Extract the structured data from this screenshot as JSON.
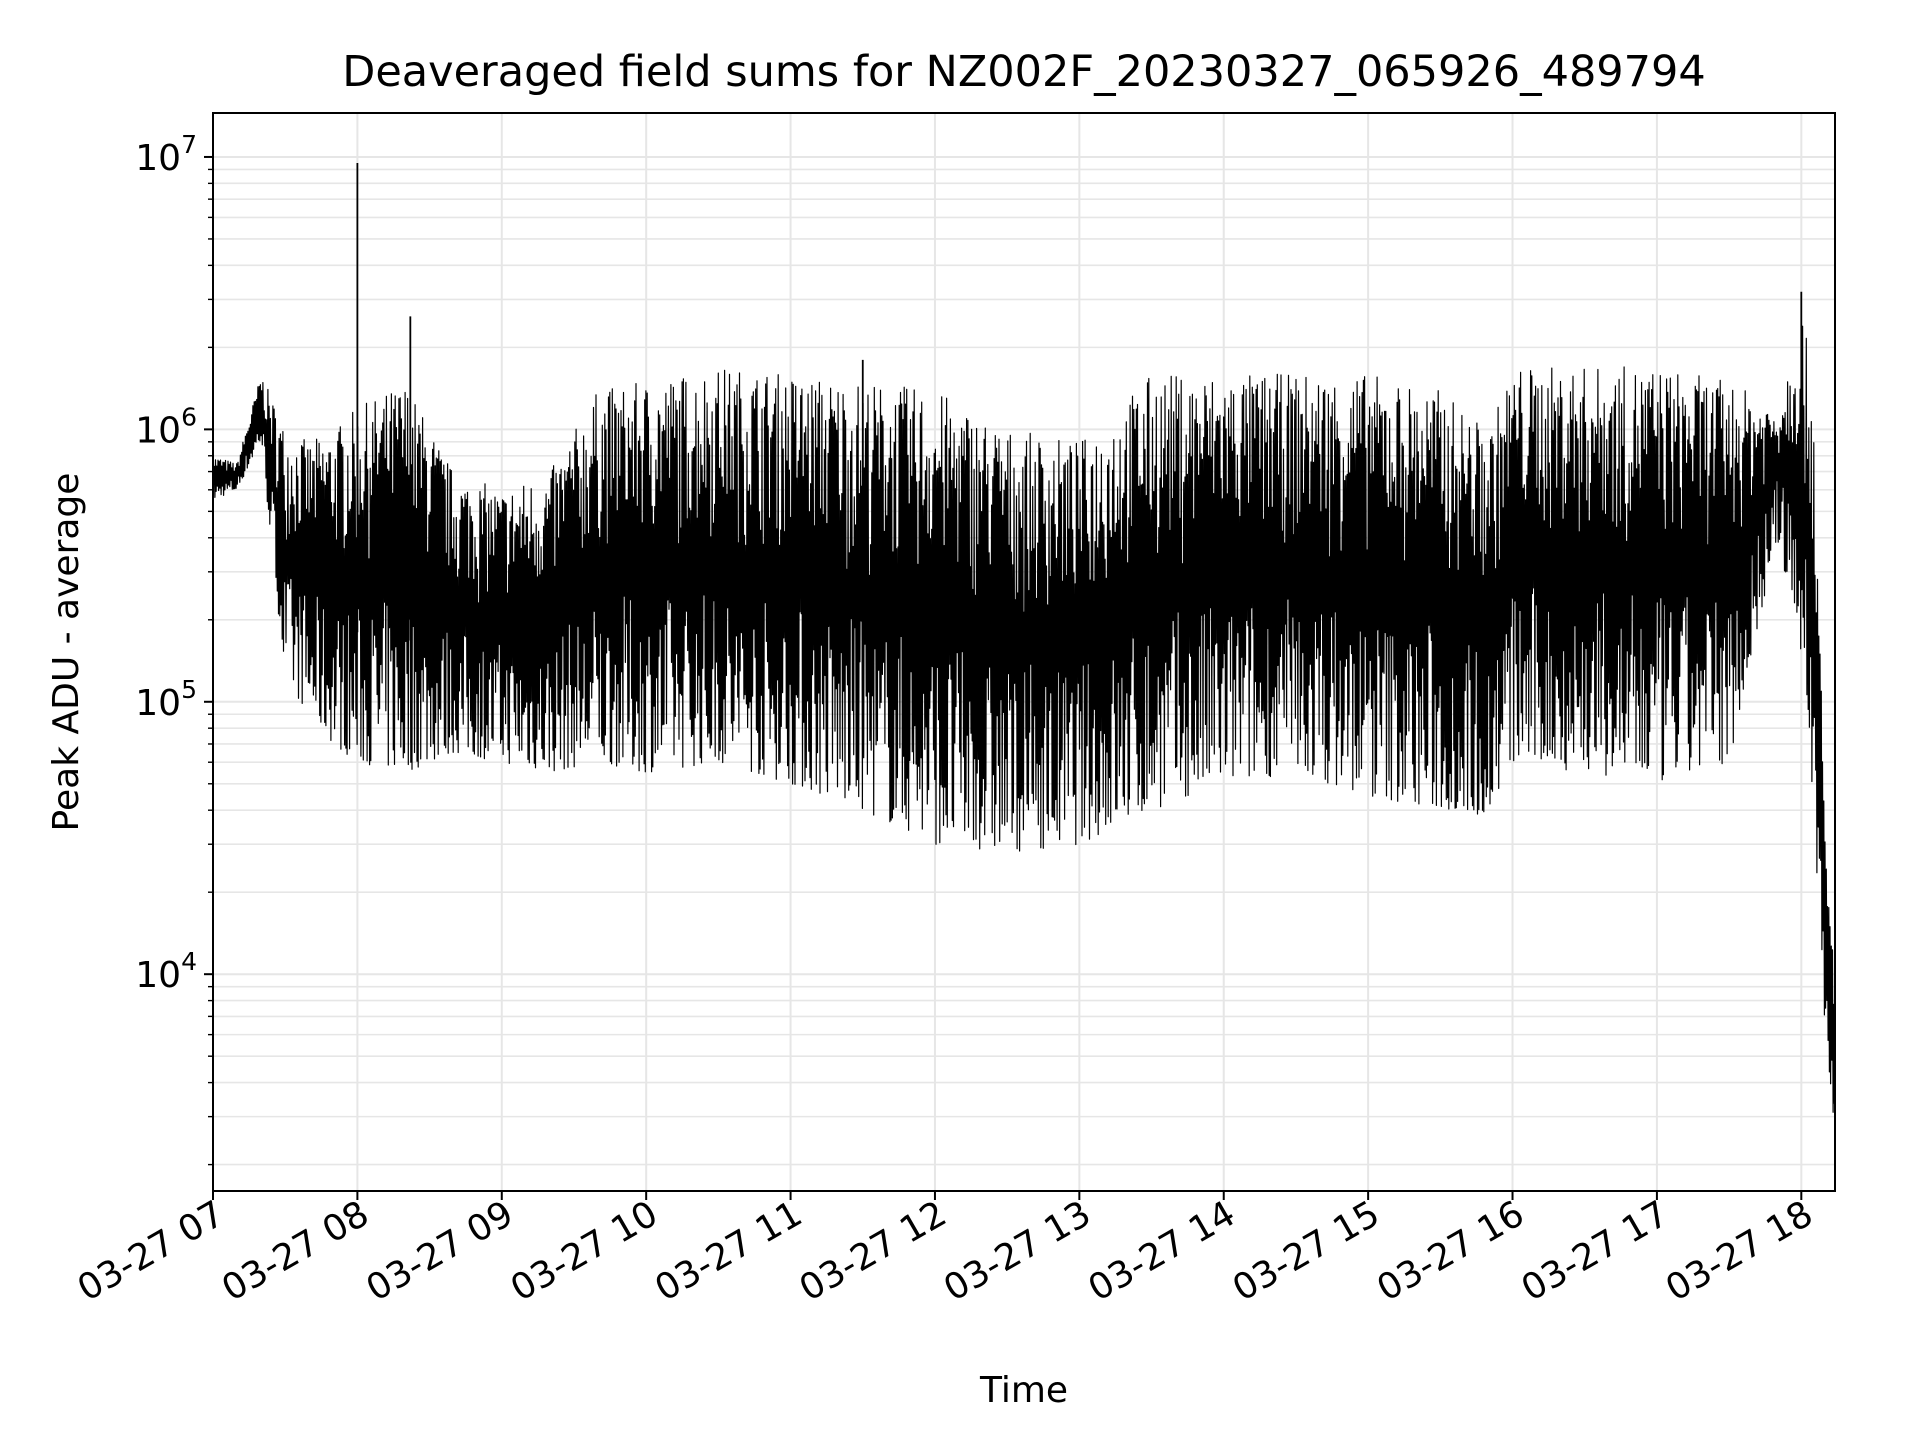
{
  "chart_data": {
    "type": "line",
    "title": "Deaveraged field sums for NZ002F_20230327_065926_489794",
    "xlabel": "Time",
    "ylabel": "Peak ADU - average",
    "yscale": "log",
    "ylim": [
      1600,
      14500000
    ],
    "xlim": [
      "2023-03-27 07:00",
      "2023-03-27 18:14"
    ],
    "grid": true,
    "legend": "none",
    "line_color": "#000000",
    "grid_color": "#e6e6e6",
    "x_ticks": [
      "03-27 07",
      "03-27 08",
      "03-27 09",
      "03-27 10",
      "03-27 11",
      "03-27 12",
      "03-27 13",
      "03-27 14",
      "03-27 15",
      "03-27 16",
      "03-27 17",
      "03-27 18"
    ],
    "y_ticks": [
      {
        "base": "10",
        "exp": "4",
        "value": 10000
      },
      {
        "base": "10",
        "exp": "5",
        "value": 100000
      },
      {
        "base": "10",
        "exp": "6",
        "value": 1000000
      },
      {
        "base": "10",
        "exp": "7",
        "value": 10000000
      }
    ],
    "series": [
      {
        "x": [
          "2023-03-27 07:00",
          "2023-03-27 07:10",
          "2023-03-27 07:20",
          "2023-03-27 07:30",
          "2023-03-27 07:40",
          "2023-03-27 07:50",
          "2023-03-27 08:00",
          "2023-03-27 08:20",
          "2023-03-27 08:40",
          "2023-03-27 09:00",
          "2023-03-27 09:20",
          "2023-03-27 09:40",
          "2023-03-27 10:00",
          "2023-03-27 10:30",
          "2023-03-27 11:00",
          "2023-03-27 11:30",
          "2023-03-27 12:00",
          "2023-03-27 12:30",
          "2023-03-27 13:00",
          "2023-03-27 13:30",
          "2023-03-27 14:00",
          "2023-03-27 14:30",
          "2023-03-27 15:00",
          "2023-03-27 15:30",
          "2023-03-27 15:50",
          "2023-03-27 16:00",
          "2023-03-27 16:30",
          "2023-03-27 17:00",
          "2023-03-27 17:30",
          "2023-03-27 17:50",
          "2023-03-27 18:00",
          "2023-03-27 18:05",
          "2023-03-27 18:10",
          "2023-03-27 18:14"
        ],
        "y_upper": [
          800000,
          750000,
          1600000,
          1000000,
          900000,
          1000000,
          1200000,
          1500000,
          700000,
          600000,
          700000,
          1400000,
          1500000,
          1700000,
          1600000,
          1500000,
          1400000,
          1000000,
          900000,
          1600000,
          1600000,
          1600000,
          1600000,
          1400000,
          1000000,
          1700000,
          1700000,
          1700000,
          1500000,
          1200000,
          2800000,
          1500000,
          30000,
          10000
        ],
        "y_lower": [
          550000,
          600000,
          900000,
          120000,
          90000,
          70000,
          60000,
          55000,
          65000,
          60000,
          55000,
          60000,
          55000,
          60000,
          50000,
          40000,
          30000,
          28000,
          30000,
          40000,
          50000,
          55000,
          45000,
          40000,
          38000,
          60000,
          55000,
          50000,
          60000,
          400000,
          150000,
          40000,
          6000,
          2500
        ],
        "spikes": [
          {
            "x": "2023-03-27 08:00",
            "y": 9500000
          },
          {
            "x": "2023-03-27 08:22",
            "y": 2600000
          },
          {
            "x": "2023-03-27 18:00",
            "y": 3200000
          },
          {
            "x": "2023-03-27 11:30",
            "y": 1800000
          }
        ]
      }
    ]
  }
}
